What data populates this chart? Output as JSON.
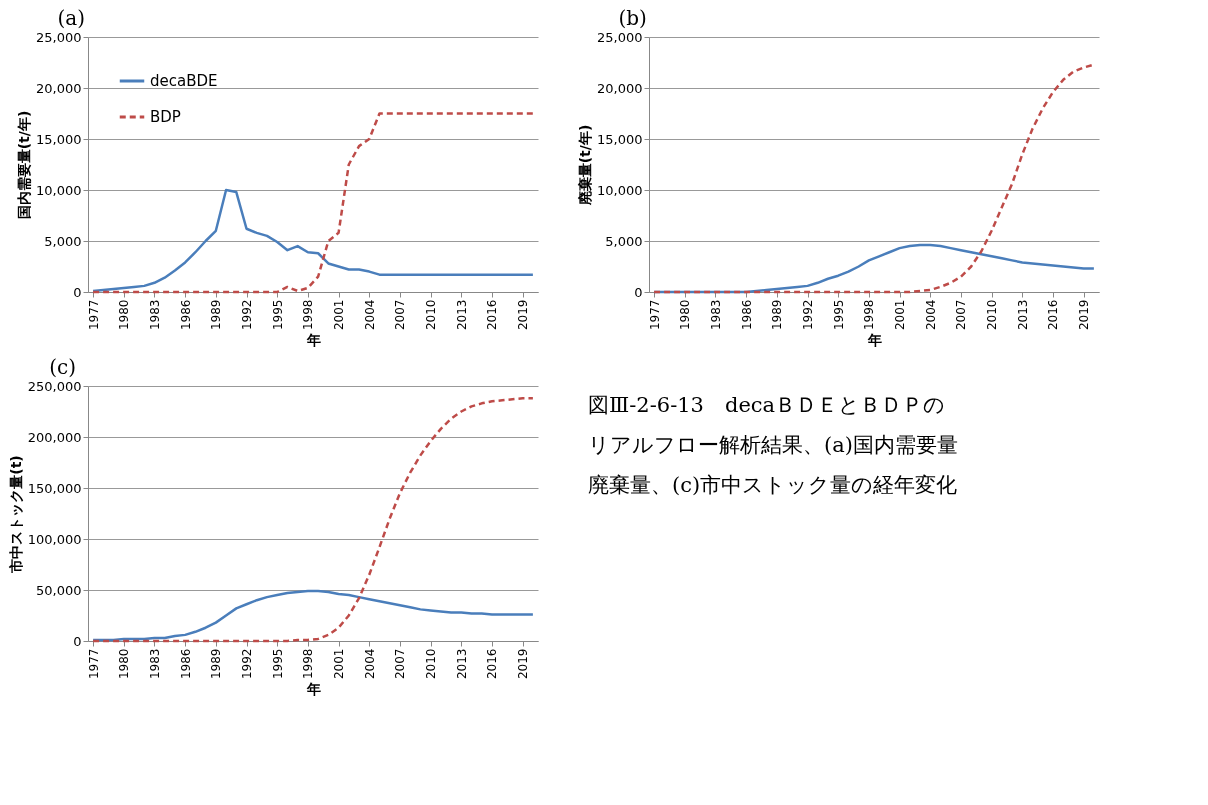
{
  "chart_data": [
    {
      "type": "line",
      "title": "(a)",
      "xlabel": "年",
      "ylabel": "国内需要量(t/年)",
      "x": [
        1977,
        1978,
        1979,
        1980,
        1981,
        1982,
        1983,
        1984,
        1985,
        1986,
        1987,
        1988,
        1989,
        1990,
        1991,
        1992,
        1993,
        1994,
        1995,
        1996,
        1997,
        1998,
        1999,
        2000,
        2001,
        2002,
        2003,
        2004,
        2005,
        2006,
        2007,
        2008,
        2009,
        2010,
        2011,
        2012,
        2013,
        2014,
        2015,
        2016,
        2017,
        2018,
        2019,
        2020
      ],
      "xlim": [
        1976.5,
        2020.5
      ],
      "xticks": [
        1977,
        1980,
        1983,
        1986,
        1989,
        1992,
        1995,
        1998,
        2001,
        2004,
        2007,
        2010,
        2013,
        2016,
        2019
      ],
      "ylim": [
        0,
        25000
      ],
      "yticks": [
        {
          "value": 0,
          "label": "0"
        },
        {
          "value": 5000,
          "label": "5,000"
        },
        {
          "value": 10000,
          "label": "10,000"
        },
        {
          "value": 15000,
          "label": "15,000"
        },
        {
          "value": 20000,
          "label": "20,000"
        },
        {
          "value": 25000,
          "label": "25,000"
        }
      ],
      "grid": "y",
      "legend": "top left",
      "series": [
        {
          "name": "decaBDE",
          "color": "#4a7ebb",
          "line_style": "solid",
          "values": [
            100,
            200,
            300,
            400,
            500,
            600,
            900,
            1400,
            2100,
            2900,
            3900,
            5000,
            6000,
            10000,
            9800,
            6200,
            5800,
            5500,
            4900,
            4100,
            4500,
            3900,
            3800,
            2800,
            2500,
            2200,
            2200,
            2000,
            1700,
            1700,
            1700,
            1700,
            1700,
            1700,
            1700,
            1700,
            1700,
            1700,
            1700,
            1700,
            1700,
            1700,
            1700,
            1700
          ]
        },
        {
          "name": "BDP",
          "color": "#be4b48",
          "line_style": "dashed",
          "values": [
            0,
            0,
            0,
            0,
            0,
            0,
            0,
            0,
            0,
            0,
            0,
            0,
            0,
            0,
            0,
            0,
            0,
            0,
            0,
            500,
            100,
            400,
            1500,
            5000,
            5800,
            12500,
            14300,
            15000,
            17500,
            17500,
            17500,
            17500,
            17500,
            17500,
            17500,
            17500,
            17500,
            17500,
            17500,
            17500,
            17500,
            17500,
            17500,
            17500
          ]
        }
      ]
    },
    {
      "type": "line",
      "title": "(b)",
      "xlabel": "年",
      "ylabel": "廃棄量(t/年)",
      "x": [
        1977,
        1978,
        1979,
        1980,
        1981,
        1982,
        1983,
        1984,
        1985,
        1986,
        1987,
        1988,
        1989,
        1990,
        1991,
        1992,
        1993,
        1994,
        1995,
        1996,
        1997,
        1998,
        1999,
        2000,
        2001,
        2002,
        2003,
        2004,
        2005,
        2006,
        2007,
        2008,
        2009,
        2010,
        2011,
        2012,
        2013,
        2014,
        2015,
        2016,
        2017,
        2018,
        2019,
        2020
      ],
      "xlim": [
        1976.5,
        2020.5
      ],
      "xticks": [
        1977,
        1980,
        1983,
        1986,
        1989,
        1992,
        1995,
        1998,
        2001,
        2004,
        2007,
        2010,
        2013,
        2016,
        2019
      ],
      "ylim": [
        0,
        25000
      ],
      "yticks": [
        {
          "value": 0,
          "label": "0"
        },
        {
          "value": 5000,
          "label": "5,000"
        },
        {
          "value": 10000,
          "label": "10,000"
        },
        {
          "value": 15000,
          "label": "15,000"
        },
        {
          "value": 20000,
          "label": "20,000"
        },
        {
          "value": 25000,
          "label": "25,000"
        }
      ],
      "grid": "y",
      "legend": "top left",
      "series": [
        {
          "name": "decaBDE",
          "color": "#4a7ebb",
          "line_style": "solid",
          "values": [
            0,
            0,
            0,
            0,
            0,
            0,
            0,
            0,
            0,
            0,
            100,
            200,
            300,
            400,
            500,
            600,
            900,
            1300,
            1600,
            2000,
            2500,
            3100,
            3500,
            3900,
            4300,
            4500,
            4600,
            4600,
            4500,
            4300,
            4100,
            3900,
            3700,
            3500,
            3300,
            3100,
            2900,
            2800,
            2700,
            2600,
            2500,
            2400,
            2300,
            2300
          ]
        },
        {
          "name": "BDP",
          "color": "#be4b48",
          "line_style": "dashed",
          "values": [
            0,
            0,
            0,
            0,
            0,
            0,
            0,
            0,
            0,
            0,
            0,
            0,
            0,
            0,
            0,
            0,
            0,
            0,
            0,
            0,
            0,
            0,
            0,
            0,
            0,
            0,
            100,
            200,
            500,
            900,
            1500,
            2500,
            4000,
            6000,
            8300,
            10600,
            13500,
            16000,
            18000,
            19600,
            20800,
            21600,
            22000,
            22300
          ]
        }
      ]
    },
    {
      "type": "line",
      "title": "(c)",
      "xlabel": "年",
      "ylabel": "市中ストック量(t)",
      "x": [
        1977,
        1978,
        1979,
        1980,
        1981,
        1982,
        1983,
        1984,
        1985,
        1986,
        1987,
        1988,
        1989,
        1990,
        1991,
        1992,
        1993,
        1994,
        1995,
        1996,
        1997,
        1998,
        1999,
        2000,
        2001,
        2002,
        2003,
        2004,
        2005,
        2006,
        2007,
        2008,
        2009,
        2010,
        2011,
        2012,
        2013,
        2014,
        2015,
        2016,
        2017,
        2018,
        2019,
        2020
      ],
      "xlim": [
        1976.5,
        2020.5
      ],
      "xticks": [
        1977,
        1980,
        1983,
        1986,
        1989,
        1992,
        1995,
        1998,
        2001,
        2004,
        2007,
        2010,
        2013,
        2016,
        2019
      ],
      "ylim": [
        0,
        250000
      ],
      "yticks": [
        {
          "value": 0,
          "label": "0"
        },
        {
          "value": 50000,
          "label": "50,000"
        },
        {
          "value": 100000,
          "label": "100,000"
        },
        {
          "value": 150000,
          "label": "150,000"
        },
        {
          "value": 200000,
          "label": "200,000"
        },
        {
          "value": 250000,
          "label": "250,000"
        }
      ],
      "grid": "y",
      "legend": "top left",
      "series": [
        {
          "name": "decaBDE",
          "color": "#4a7ebb",
          "line_style": "solid",
          "values": [
            1000,
            1000,
            1000,
            2000,
            2000,
            2000,
            3000,
            3000,
            5000,
            6000,
            9000,
            13000,
            18000,
            25000,
            32000,
            36000,
            40000,
            43000,
            45000,
            47000,
            48000,
            49000,
            49000,
            48000,
            46000,
            45000,
            43000,
            41000,
            39000,
            37000,
            35000,
            33000,
            31000,
            30000,
            29000,
            28000,
            28000,
            27000,
            27000,
            26000,
            26000,
            26000,
            26000,
            26000
          ]
        },
        {
          "name": "BDP",
          "color": "#be4b48",
          "line_style": "dashed",
          "values": [
            0,
            0,
            0,
            0,
            0,
            0,
            0,
            0,
            0,
            0,
            0,
            0,
            0,
            0,
            0,
            0,
            0,
            0,
            0,
            0,
            1000,
            1000,
            2000,
            6000,
            13000,
            25000,
            42000,
            65000,
            92000,
            120000,
            145000,
            165000,
            182000,
            196000,
            208000,
            218000,
            225000,
            230000,
            233000,
            235000,
            236000,
            237000,
            238000,
            238000
          ]
        }
      ]
    },
    {
      "type": "other",
      "annotations": [
        "図Ⅲ-2-6-13　decaＢＤＥとＢＤＰの",
        "リアルフロー解析結果、(a)国内需要量",
        "廃棄量、(c)市中ストック量の経年変化"
      ]
    }
  ]
}
